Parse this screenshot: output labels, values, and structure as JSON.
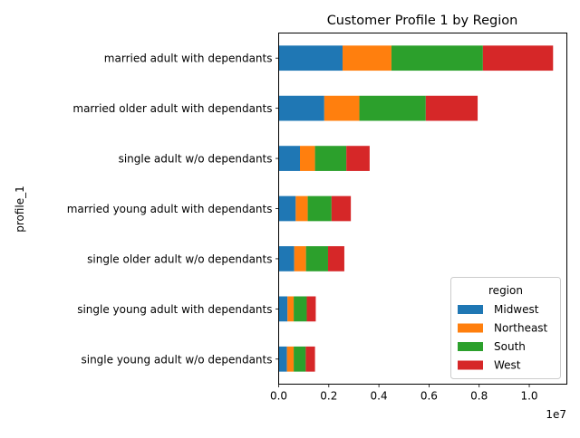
{
  "chart_data": {
    "type": "bar",
    "orientation": "horizontal",
    "stacked": true,
    "title": "Customer Profile 1 by Region",
    "ylabel": "profile_1",
    "xlabel": "",
    "x_offset_label": "1e7",
    "xlim": [
      0,
      11500000
    ],
    "x_ticks": [
      0,
      2000000,
      4000000,
      6000000,
      8000000,
      10000000
    ],
    "x_tick_labels": [
      "0.0",
      "0.2",
      "0.4",
      "0.6",
      "0.8",
      "1.0"
    ],
    "grid": false,
    "legend": {
      "title": "region",
      "placement": "lower-right"
    },
    "categories": [
      "married adult with dependants",
      "married older adult with dependants",
      "single adult w/o dependants",
      "married young adult with dependants",
      "single older adult w/o dependants",
      "single young adult with dependants",
      "single young adult w/o dependants"
    ],
    "series": [
      {
        "name": "Midwest",
        "color": "#1f77b4",
        "values": [
          2550000,
          1820000,
          850000,
          680000,
          620000,
          350000,
          330000
        ]
      },
      {
        "name": "Northeast",
        "color": "#ff7f0e",
        "values": [
          1950000,
          1400000,
          600000,
          480000,
          470000,
          250000,
          270000
        ]
      },
      {
        "name": "South",
        "color": "#2ca02c",
        "values": [
          3650000,
          2650000,
          1250000,
          950000,
          880000,
          520000,
          480000
        ]
      },
      {
        "name": "West",
        "color": "#d62728",
        "values": [
          2800000,
          2070000,
          930000,
          770000,
          650000,
          360000,
          370000
        ]
      }
    ]
  }
}
